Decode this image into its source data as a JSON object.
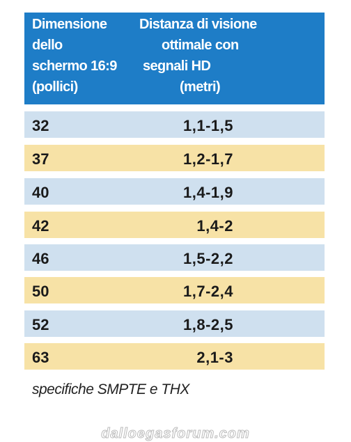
{
  "table": {
    "header": [
      [
        "Dimensione",
        "dello",
        "schermo 16:9",
        "(pollici)"
      ],
      [
        "Distanza di visione",
        "ottimale con",
        "segnali HD",
        "(metri)"
      ]
    ],
    "rows": [
      [
        "32",
        "1,1-1,5"
      ],
      [
        "37",
        "1,2-1,7"
      ],
      [
        "40",
        "1,4-1,9"
      ],
      [
        "42",
        "1,4-2"
      ],
      [
        "46",
        "1,5-2,2"
      ],
      [
        "50",
        "1,7-2,4"
      ],
      [
        "52",
        "1,8-2,5"
      ],
      [
        "63",
        "2,1-3"
      ]
    ],
    "note": "specifiche SMPTE  e  THX"
  },
  "watermark": "dalloegasforum.com"
}
